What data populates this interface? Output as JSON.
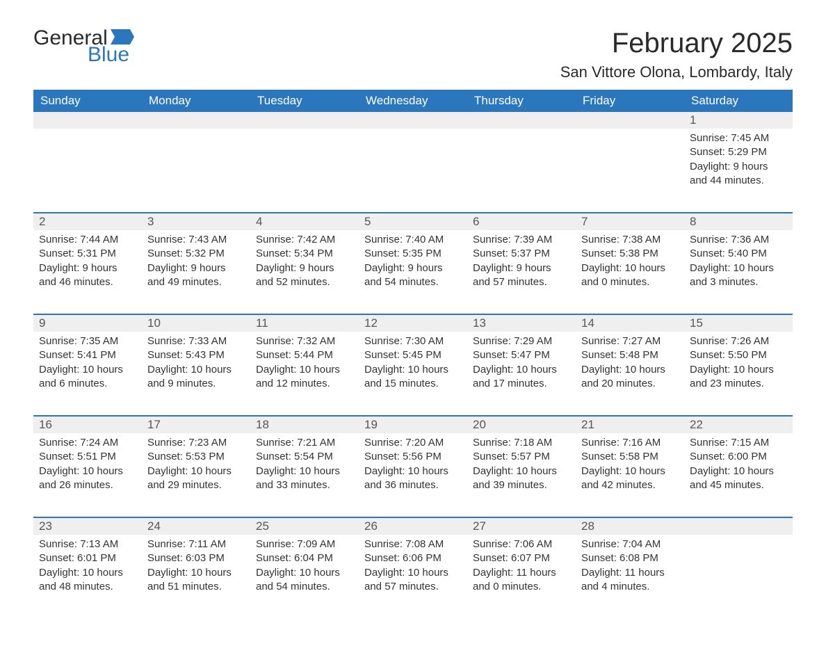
{
  "logo": {
    "text_general": "General",
    "text_blue": "Blue",
    "flag_color": "#2b77bd"
  },
  "header": {
    "month_title": "February 2025",
    "location": "San Vittore Olona, Lombardy, Italy"
  },
  "colors": {
    "header_bg": "#2b77bd",
    "header_text": "#ffffff",
    "daynum_bg": "#efefef",
    "text": "#333333",
    "border": "#2b77bd"
  },
  "day_names": [
    "Sunday",
    "Monday",
    "Tuesday",
    "Wednesday",
    "Thursday",
    "Friday",
    "Saturday"
  ],
  "weeks": [
    [
      null,
      null,
      null,
      null,
      null,
      null,
      {
        "n": "1",
        "sunrise": "Sunrise: 7:45 AM",
        "sunset": "Sunset: 5:29 PM",
        "day1": "Daylight: 9 hours",
        "day2": "and 44 minutes."
      }
    ],
    [
      {
        "n": "2",
        "sunrise": "Sunrise: 7:44 AM",
        "sunset": "Sunset: 5:31 PM",
        "day1": "Daylight: 9 hours",
        "day2": "and 46 minutes."
      },
      {
        "n": "3",
        "sunrise": "Sunrise: 7:43 AM",
        "sunset": "Sunset: 5:32 PM",
        "day1": "Daylight: 9 hours",
        "day2": "and 49 minutes."
      },
      {
        "n": "4",
        "sunrise": "Sunrise: 7:42 AM",
        "sunset": "Sunset: 5:34 PM",
        "day1": "Daylight: 9 hours",
        "day2": "and 52 minutes."
      },
      {
        "n": "5",
        "sunrise": "Sunrise: 7:40 AM",
        "sunset": "Sunset: 5:35 PM",
        "day1": "Daylight: 9 hours",
        "day2": "and 54 minutes."
      },
      {
        "n": "6",
        "sunrise": "Sunrise: 7:39 AM",
        "sunset": "Sunset: 5:37 PM",
        "day1": "Daylight: 9 hours",
        "day2": "and 57 minutes."
      },
      {
        "n": "7",
        "sunrise": "Sunrise: 7:38 AM",
        "sunset": "Sunset: 5:38 PM",
        "day1": "Daylight: 10 hours",
        "day2": "and 0 minutes."
      },
      {
        "n": "8",
        "sunrise": "Sunrise: 7:36 AM",
        "sunset": "Sunset: 5:40 PM",
        "day1": "Daylight: 10 hours",
        "day2": "and 3 minutes."
      }
    ],
    [
      {
        "n": "9",
        "sunrise": "Sunrise: 7:35 AM",
        "sunset": "Sunset: 5:41 PM",
        "day1": "Daylight: 10 hours",
        "day2": "and 6 minutes."
      },
      {
        "n": "10",
        "sunrise": "Sunrise: 7:33 AM",
        "sunset": "Sunset: 5:43 PM",
        "day1": "Daylight: 10 hours",
        "day2": "and 9 minutes."
      },
      {
        "n": "11",
        "sunrise": "Sunrise: 7:32 AM",
        "sunset": "Sunset: 5:44 PM",
        "day1": "Daylight: 10 hours",
        "day2": "and 12 minutes."
      },
      {
        "n": "12",
        "sunrise": "Sunrise: 7:30 AM",
        "sunset": "Sunset: 5:45 PM",
        "day1": "Daylight: 10 hours",
        "day2": "and 15 minutes."
      },
      {
        "n": "13",
        "sunrise": "Sunrise: 7:29 AM",
        "sunset": "Sunset: 5:47 PM",
        "day1": "Daylight: 10 hours",
        "day2": "and 17 minutes."
      },
      {
        "n": "14",
        "sunrise": "Sunrise: 7:27 AM",
        "sunset": "Sunset: 5:48 PM",
        "day1": "Daylight: 10 hours",
        "day2": "and 20 minutes."
      },
      {
        "n": "15",
        "sunrise": "Sunrise: 7:26 AM",
        "sunset": "Sunset: 5:50 PM",
        "day1": "Daylight: 10 hours",
        "day2": "and 23 minutes."
      }
    ],
    [
      {
        "n": "16",
        "sunrise": "Sunrise: 7:24 AM",
        "sunset": "Sunset: 5:51 PM",
        "day1": "Daylight: 10 hours",
        "day2": "and 26 minutes."
      },
      {
        "n": "17",
        "sunrise": "Sunrise: 7:23 AM",
        "sunset": "Sunset: 5:53 PM",
        "day1": "Daylight: 10 hours",
        "day2": "and 29 minutes."
      },
      {
        "n": "18",
        "sunrise": "Sunrise: 7:21 AM",
        "sunset": "Sunset: 5:54 PM",
        "day1": "Daylight: 10 hours",
        "day2": "and 33 minutes."
      },
      {
        "n": "19",
        "sunrise": "Sunrise: 7:20 AM",
        "sunset": "Sunset: 5:56 PM",
        "day1": "Daylight: 10 hours",
        "day2": "and 36 minutes."
      },
      {
        "n": "20",
        "sunrise": "Sunrise: 7:18 AM",
        "sunset": "Sunset: 5:57 PM",
        "day1": "Daylight: 10 hours",
        "day2": "and 39 minutes."
      },
      {
        "n": "21",
        "sunrise": "Sunrise: 7:16 AM",
        "sunset": "Sunset: 5:58 PM",
        "day1": "Daylight: 10 hours",
        "day2": "and 42 minutes."
      },
      {
        "n": "22",
        "sunrise": "Sunrise: 7:15 AM",
        "sunset": "Sunset: 6:00 PM",
        "day1": "Daylight: 10 hours",
        "day2": "and 45 minutes."
      }
    ],
    [
      {
        "n": "23",
        "sunrise": "Sunrise: 7:13 AM",
        "sunset": "Sunset: 6:01 PM",
        "day1": "Daylight: 10 hours",
        "day2": "and 48 minutes."
      },
      {
        "n": "24",
        "sunrise": "Sunrise: 7:11 AM",
        "sunset": "Sunset: 6:03 PM",
        "day1": "Daylight: 10 hours",
        "day2": "and 51 minutes."
      },
      {
        "n": "25",
        "sunrise": "Sunrise: 7:09 AM",
        "sunset": "Sunset: 6:04 PM",
        "day1": "Daylight: 10 hours",
        "day2": "and 54 minutes."
      },
      {
        "n": "26",
        "sunrise": "Sunrise: 7:08 AM",
        "sunset": "Sunset: 6:06 PM",
        "day1": "Daylight: 10 hours",
        "day2": "and 57 minutes."
      },
      {
        "n": "27",
        "sunrise": "Sunrise: 7:06 AM",
        "sunset": "Sunset: 6:07 PM",
        "day1": "Daylight: 11 hours",
        "day2": "and 0 minutes."
      },
      {
        "n": "28",
        "sunrise": "Sunrise: 7:04 AM",
        "sunset": "Sunset: 6:08 PM",
        "day1": "Daylight: 11 hours",
        "day2": "and 4 minutes."
      },
      null
    ]
  ]
}
